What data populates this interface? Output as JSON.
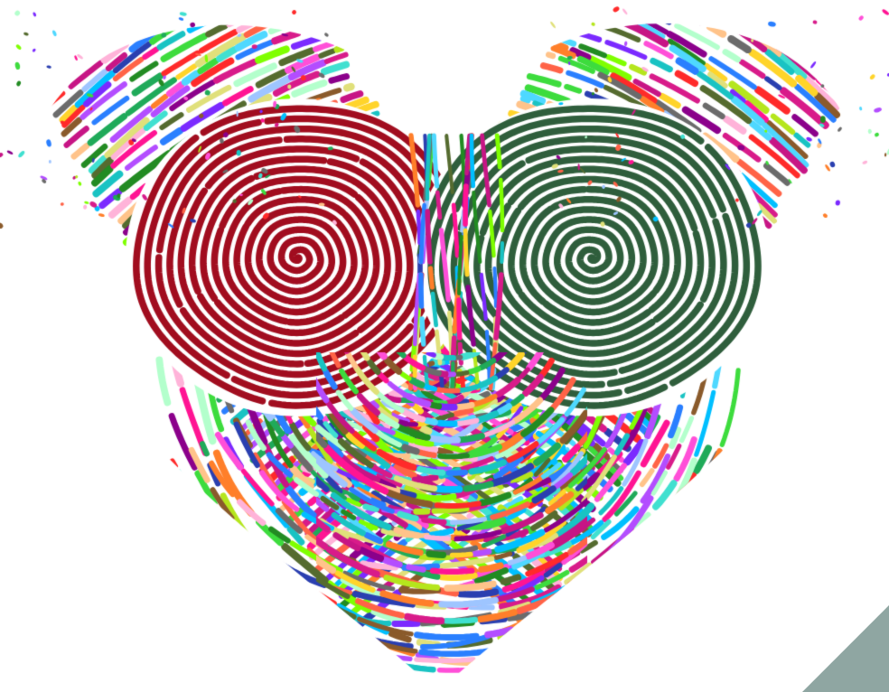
{
  "artwork": {
    "subject": "heart-shaped-fingerprint-illustration",
    "left_whorl_color": "#a10d1f",
    "right_whorl_color": "#2f5e3c",
    "corner_color": "#8fa6a2",
    "background_color": "#ffffff",
    "palette": [
      "#ff2a2a",
      "#ff7f2a",
      "#ffd42a",
      "#b5e61d",
      "#3ddc3d",
      "#1faa59",
      "#19c3c3",
      "#4fd8ff",
      "#2a7fff",
      "#2a3fb0",
      "#7b2aff",
      "#b34dff",
      "#ff4fd8",
      "#d81b8a",
      "#8a5a2b",
      "#556b2f",
      "#ffb3d9",
      "#b3ffcc",
      "#9ec5ff",
      "#ffc38a",
      "#6b6b6b",
      "#e0e07a",
      "#40e0d0",
      "#c71585",
      "#00bfff",
      "#7fff00",
      "#ff1493",
      "#8b008b",
      "#228b22",
      "#ff6347"
    ]
  }
}
